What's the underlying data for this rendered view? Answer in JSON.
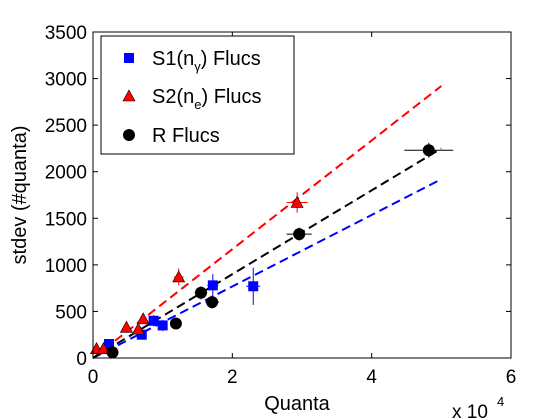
{
  "chart_data": {
    "type": "scatter",
    "xlabel": "Quanta",
    "ylabel": "stdev (#quanta)",
    "x_multiplier": {
      "base": "x 10",
      "exponent": "4"
    },
    "xlim": [
      0,
      60000
    ],
    "ylim": [
      0,
      3500
    ],
    "x_ticks": [
      0,
      20000,
      40000,
      60000
    ],
    "x_tick_labels": [
      "0",
      "2",
      "4",
      "6"
    ],
    "y_ticks": [
      0,
      500,
      1000,
      1500,
      2000,
      2500,
      3000,
      3500
    ],
    "y_tick_labels": [
      "0",
      "500",
      "1000",
      "1500",
      "2000",
      "2500",
      "3000",
      "3500"
    ],
    "grid": false,
    "legend_position": "top-left",
    "legend": [
      {
        "label": "S1(n",
        "sub": "γ",
        "suffix": ") Flucs",
        "marker": "square",
        "color": "#0000ff"
      },
      {
        "label": "S2(n",
        "sub": "e",
        "suffix": ") Flucs",
        "marker": "triangle",
        "color": "#ff0000"
      },
      {
        "label": "R Flucs",
        "sub": "",
        "suffix": "",
        "marker": "circle",
        "color": "#000000"
      }
    ],
    "series": [
      {
        "name": "S1(nγ) Flucs",
        "marker": "square",
        "color": "#0000ff",
        "points": [
          {
            "x": 2300,
            "y": 150,
            "xerr": 300,
            "yerr": 40
          },
          {
            "x": 7000,
            "y": 250,
            "xerr": 500,
            "yerr": 50
          },
          {
            "x": 8700,
            "y": 400,
            "xerr": 600,
            "yerr": 60
          },
          {
            "x": 10000,
            "y": 350,
            "xerr": 700,
            "yerr": 60
          },
          {
            "x": 17200,
            "y": 780,
            "xerr": 800,
            "yerr": 120
          },
          {
            "x": 23000,
            "y": 770,
            "xerr": 1000,
            "yerr": 200
          }
        ],
        "fit": {
          "x": [
            0,
            50000
          ],
          "y": [
            0,
            1920
          ],
          "style": "dashed"
        }
      },
      {
        "name": "S2(ne) Flucs",
        "marker": "triangle",
        "color": "#ff0000",
        "points": [
          {
            "x": 500,
            "y": 100,
            "xerr": 100,
            "yerr": 20
          },
          {
            "x": 1500,
            "y": 100,
            "xerr": 150,
            "yerr": 20
          },
          {
            "x": 4800,
            "y": 330,
            "xerr": 300,
            "yerr": 40
          },
          {
            "x": 6500,
            "y": 310,
            "xerr": 400,
            "yerr": 40
          },
          {
            "x": 7200,
            "y": 420,
            "xerr": 500,
            "yerr": 50
          },
          {
            "x": 12300,
            "y": 870,
            "xerr": 700,
            "yerr": 90
          },
          {
            "x": 29300,
            "y": 1670,
            "xerr": 1500,
            "yerr": 110
          }
        ],
        "fit": {
          "x": [
            0,
            50000
          ],
          "y": [
            0,
            2920
          ],
          "style": "dashed"
        }
      },
      {
        "name": "R Flucs",
        "marker": "circle",
        "color": "#000000",
        "points": [
          {
            "x": 2800,
            "y": 60,
            "xerr": 300,
            "yerr": 20
          },
          {
            "x": 11900,
            "y": 370,
            "xerr": 700,
            "yerr": 50
          },
          {
            "x": 15500,
            "y": 700,
            "xerr": 900,
            "yerr": 70
          },
          {
            "x": 17100,
            "y": 600,
            "xerr": 1000,
            "yerr": 70
          },
          {
            "x": 29600,
            "y": 1330,
            "xerr": 1800,
            "yerr": 70
          },
          {
            "x": 48200,
            "y": 2230,
            "xerr": 3500,
            "yerr": 80
          }
        ],
        "fit": {
          "x": [
            0,
            50000
          ],
          "y": [
            0,
            2250
          ],
          "style": "dashed"
        }
      }
    ]
  }
}
